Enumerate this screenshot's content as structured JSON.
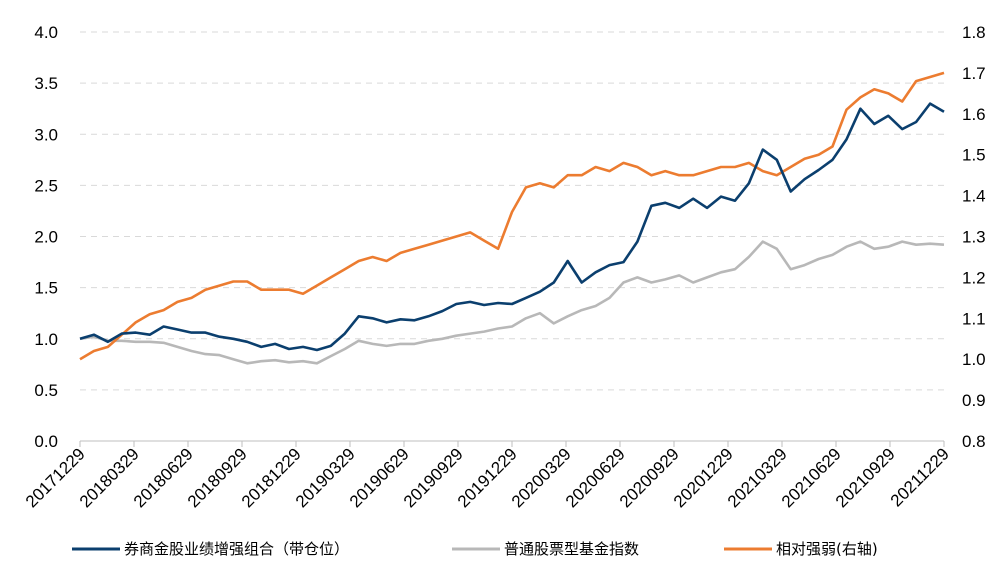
{
  "chart_data": {
    "type": "line",
    "title": "",
    "xlabel": "",
    "ylabel": "",
    "y_left": {
      "min": 0.0,
      "max": 4.0,
      "ticks": [
        "0.0",
        "0.5",
        "1.0",
        "1.5",
        "2.0",
        "2.5",
        "3.0",
        "3.5",
        "4.0"
      ]
    },
    "y_right": {
      "min": 0.8,
      "max": 1.8,
      "ticks": [
        "0.8",
        "0.9",
        "1.0",
        "1.1",
        "1.2",
        "1.3",
        "1.4",
        "1.5",
        "1.6",
        "1.7",
        "1.8"
      ]
    },
    "grid": "horizontal dashed",
    "legend_position": "bottom",
    "x_ticks": [
      "20171229",
      "20180329",
      "20180629",
      "20180929",
      "20181229",
      "20190329",
      "20190629",
      "20190929",
      "20191229",
      "20200329",
      "20200629",
      "20200929",
      "20201229",
      "20210329",
      "20210629",
      "20210929",
      "20211229"
    ],
    "series": [
      {
        "name": "券商金股业绩增强组合（带仓位）",
        "axis": "left",
        "color": "#0b3f6e",
        "values": [
          1.0,
          1.04,
          0.97,
          1.05,
          1.06,
          1.04,
          1.12,
          1.09,
          1.06,
          1.06,
          1.02,
          1.0,
          0.97,
          0.92,
          0.95,
          0.9,
          0.92,
          0.89,
          0.93,
          1.05,
          1.22,
          1.2,
          1.16,
          1.19,
          1.18,
          1.22,
          1.27,
          1.34,
          1.36,
          1.33,
          1.35,
          1.34,
          1.4,
          1.46,
          1.55,
          1.76,
          1.55,
          1.65,
          1.72,
          1.75,
          1.95,
          2.3,
          2.33,
          2.28,
          2.37,
          2.28,
          2.39,
          2.35,
          2.52,
          2.85,
          2.75,
          2.44,
          2.56,
          2.65,
          2.75,
          2.95,
          3.25,
          3.1,
          3.18,
          3.05,
          3.12,
          3.3,
          3.22
        ]
      },
      {
        "name": "普通股票型基金指数",
        "axis": "left",
        "color": "#b8b8b8",
        "values": [
          1.0,
          1.02,
          0.98,
          0.98,
          0.97,
          0.97,
          0.96,
          0.92,
          0.88,
          0.85,
          0.84,
          0.8,
          0.76,
          0.78,
          0.79,
          0.77,
          0.78,
          0.76,
          0.83,
          0.9,
          0.98,
          0.95,
          0.93,
          0.95,
          0.95,
          0.98,
          1.0,
          1.03,
          1.05,
          1.07,
          1.1,
          1.12,
          1.2,
          1.25,
          1.15,
          1.22,
          1.28,
          1.32,
          1.4,
          1.55,
          1.6,
          1.55,
          1.58,
          1.62,
          1.55,
          1.6,
          1.65,
          1.68,
          1.8,
          1.95,
          1.88,
          1.68,
          1.72,
          1.78,
          1.82,
          1.9,
          1.95,
          1.88,
          1.9,
          1.95,
          1.92,
          1.93,
          1.92
        ]
      },
      {
        "name": "相对强弱(右轴)",
        "axis": "right",
        "color": "#ec7c30",
        "values": [
          1.0,
          1.02,
          1.03,
          1.06,
          1.09,
          1.11,
          1.12,
          1.14,
          1.15,
          1.17,
          1.18,
          1.19,
          1.19,
          1.17,
          1.17,
          1.17,
          1.16,
          1.18,
          1.2,
          1.22,
          1.24,
          1.25,
          1.24,
          1.26,
          1.27,
          1.28,
          1.29,
          1.3,
          1.31,
          1.29,
          1.27,
          1.36,
          1.42,
          1.43,
          1.42,
          1.45,
          1.45,
          1.47,
          1.46,
          1.48,
          1.47,
          1.45,
          1.46,
          1.45,
          1.45,
          1.46,
          1.47,
          1.47,
          1.48,
          1.46,
          1.45,
          1.47,
          1.49,
          1.5,
          1.52,
          1.61,
          1.64,
          1.66,
          1.65,
          1.63,
          1.68,
          1.69,
          1.7
        ]
      }
    ]
  }
}
